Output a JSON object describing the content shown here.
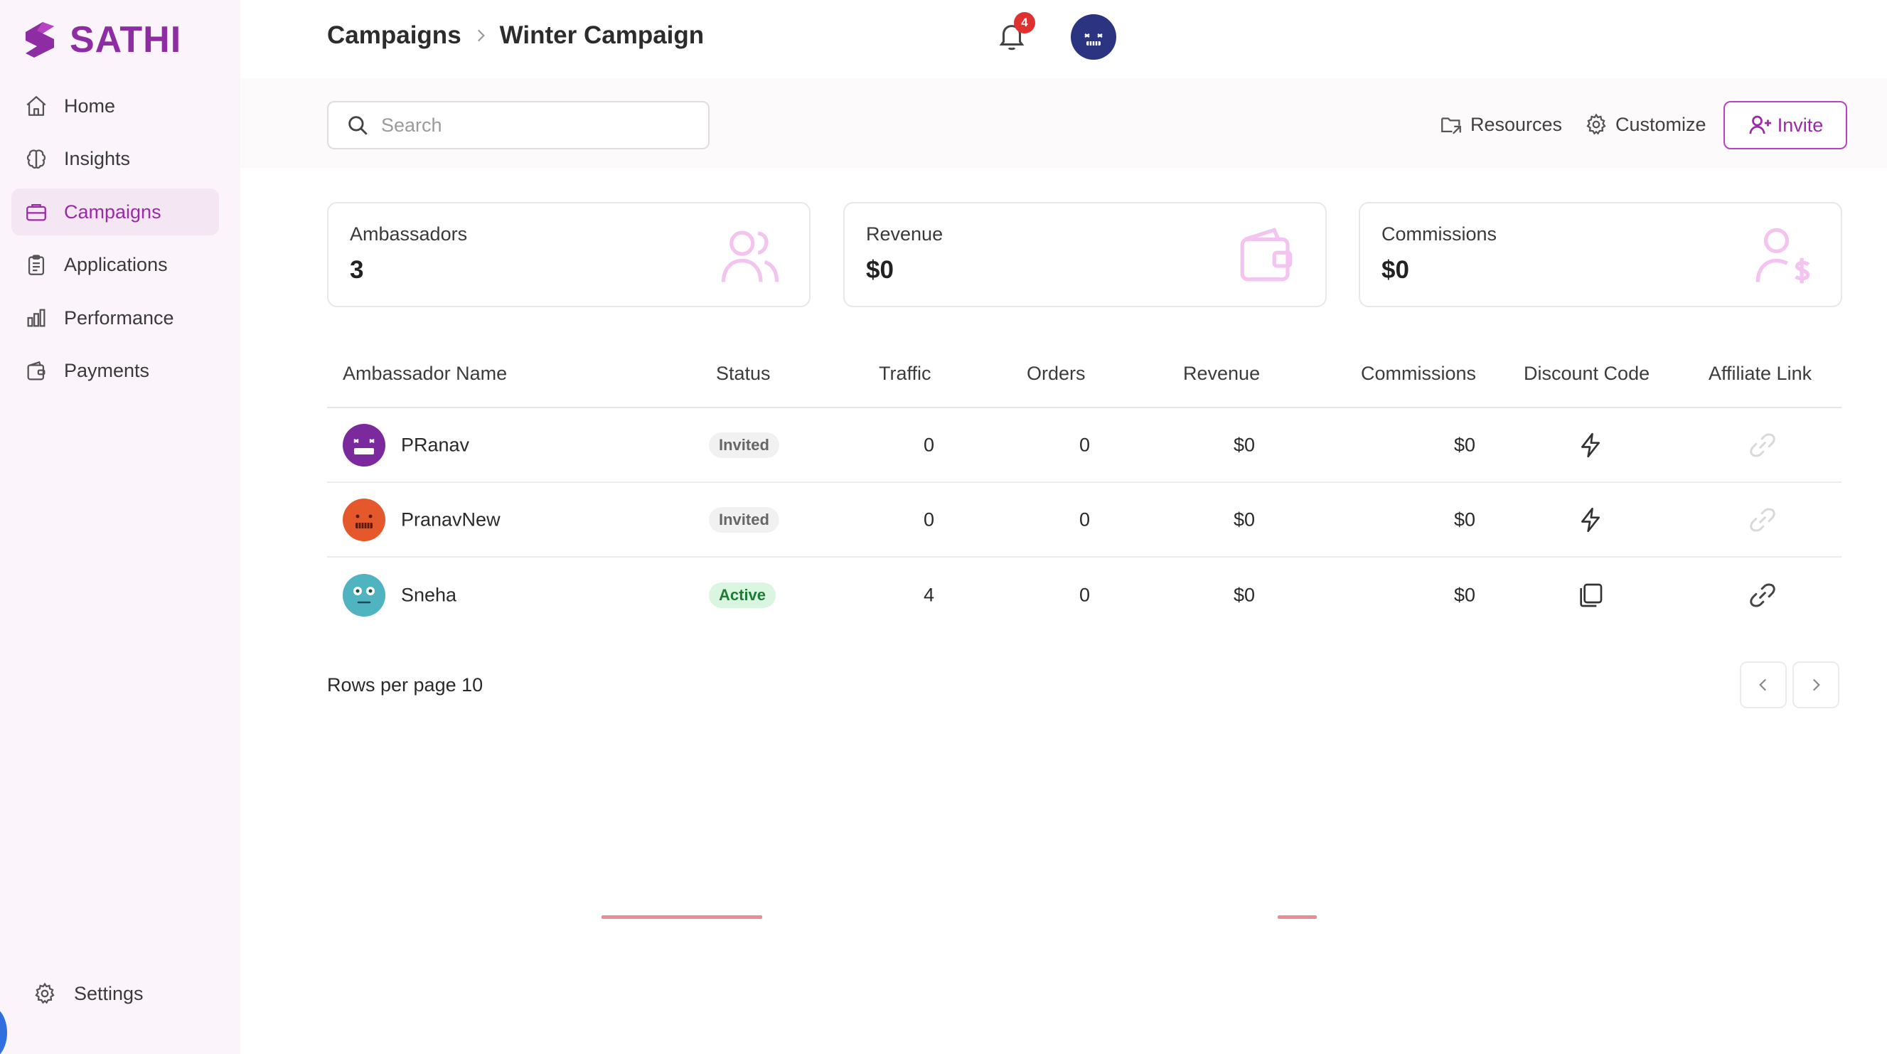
{
  "app": {
    "logo_text": "SATHI",
    "brand_color": "#8e2da3",
    "accent_color": "#b743c3"
  },
  "sidebar": {
    "items": [
      {
        "label": "Home",
        "icon": "home-icon"
      },
      {
        "label": "Insights",
        "icon": "brain-icon"
      },
      {
        "label": "Campaigns",
        "icon": "briefcase-icon",
        "active": true
      },
      {
        "label": "Applications",
        "icon": "clipboard-icon"
      },
      {
        "label": "Performance",
        "icon": "bar-chart-icon"
      },
      {
        "label": "Payments",
        "icon": "wallet-icon"
      }
    ],
    "settings_label": "Settings"
  },
  "header": {
    "breadcrumb": [
      "Campaigns",
      "Winter Campaign"
    ],
    "notification_count": "4"
  },
  "toolbar": {
    "search_placeholder": "Search",
    "resources_label": "Resources",
    "customize_label": "Customize",
    "invite_label": "Invite"
  },
  "stats": [
    {
      "title": "Ambassadors",
      "value": "3",
      "icon": "users-icon"
    },
    {
      "title": "Revenue",
      "value": "$0",
      "icon": "wallet-icon"
    },
    {
      "title": "Commissions",
      "value": "$0",
      "icon": "user-dollar-icon"
    }
  ],
  "table": {
    "columns": [
      "Ambassador Name",
      "Status",
      "Traffic",
      "Orders",
      "Revenue",
      "Commissions",
      "Discount Code",
      "Affiliate Link"
    ],
    "rows": [
      {
        "name": "PRanav",
        "status": "Invited",
        "traffic": "0",
        "orders": "0",
        "revenue": "$0",
        "commissions": "$0",
        "discount_icon": "lightning-icon",
        "link_icon": "link-icon",
        "avatar_color": "#7b2a9e"
      },
      {
        "name": "PranavNew",
        "status": "Invited",
        "traffic": "0",
        "orders": "0",
        "revenue": "$0",
        "commissions": "$0",
        "discount_icon": "lightning-icon",
        "link_icon": "link-icon",
        "avatar_color": "#e5582b"
      },
      {
        "name": "Sneha",
        "status": "Active",
        "traffic": "4",
        "orders": "0",
        "revenue": "$0",
        "commissions": "$0",
        "discount_icon": "copy-icon",
        "link_icon": "link-icon",
        "avatar_color": "#4fb3c0"
      }
    ]
  },
  "pagination": {
    "rows_per_page_label": "Rows per page 10"
  }
}
